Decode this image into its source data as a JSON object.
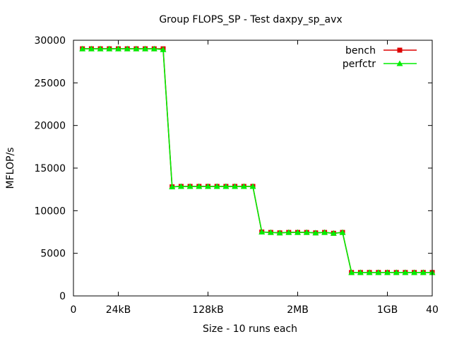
{
  "chart_data": {
    "type": "line",
    "title": "Group FLOPS_SP - Test daxpy_sp_avx",
    "xlabel": "Size - 10 runs each",
    "ylabel": "MFLOP/s",
    "xlim": [
      0,
      40
    ],
    "ylim": [
      0,
      30000
    ],
    "x_ticks": [
      {
        "value": 0,
        "label": "0"
      },
      {
        "value": 5,
        "label": "24kB"
      },
      {
        "value": 15,
        "label": "128kB"
      },
      {
        "value": 25,
        "label": "2MB"
      },
      {
        "value": 35,
        "label": "1GB"
      },
      {
        "value": 40,
        "label": "40"
      }
    ],
    "y_ticks": [
      0,
      5000,
      10000,
      15000,
      20000,
      25000,
      30000
    ],
    "grid": false,
    "legend_position": "top-right",
    "x": [
      1,
      2,
      3,
      4,
      5,
      6,
      7,
      8,
      9,
      10,
      11,
      12,
      13,
      14,
      15,
      16,
      17,
      18,
      19,
      20,
      21,
      22,
      23,
      24,
      25,
      26,
      27,
      28,
      29,
      30,
      31,
      32,
      33,
      34,
      35,
      36,
      37,
      38,
      39,
      40
    ],
    "series": [
      {
        "name": "bench",
        "color": "#dd0000",
        "marker": "square",
        "values": [
          29000,
          29000,
          29000,
          29000,
          29000,
          29000,
          29000,
          29000,
          29000,
          29000,
          12800,
          12850,
          12850,
          12850,
          12850,
          12850,
          12850,
          12850,
          12850,
          12850,
          7500,
          7450,
          7400,
          7450,
          7450,
          7450,
          7400,
          7450,
          7350,
          7450,
          2750,
          2750,
          2750,
          2750,
          2750,
          2750,
          2750,
          2750,
          2750,
          2750
        ]
      },
      {
        "name": "perfctr",
        "color": "#00ee00",
        "marker": "triangle",
        "values": [
          29000,
          29000,
          29000,
          29000,
          29000,
          29000,
          29000,
          29000,
          29000,
          28900,
          12800,
          12850,
          12850,
          12850,
          12850,
          12850,
          12850,
          12850,
          12850,
          12850,
          7500,
          7450,
          7400,
          7450,
          7450,
          7450,
          7400,
          7450,
          7350,
          7450,
          2750,
          2750,
          2750,
          2750,
          2750,
          2750,
          2750,
          2750,
          2750,
          2750
        ]
      }
    ]
  }
}
